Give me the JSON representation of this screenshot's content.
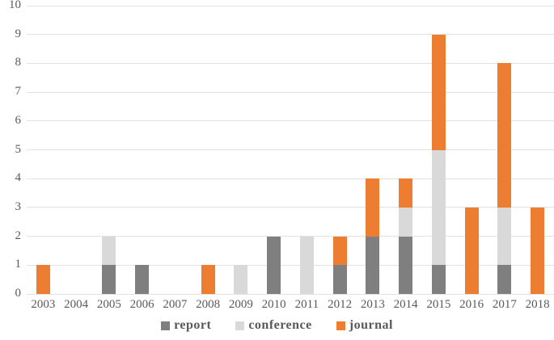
{
  "chart_data": {
    "type": "bar",
    "stacked": true,
    "title": "",
    "xlabel": "",
    "ylabel": "",
    "categories": [
      "2003",
      "2004",
      "2005",
      "2006",
      "2007",
      "2008",
      "2009",
      "2010",
      "2011",
      "2012",
      "2013",
      "2014",
      "2015",
      "2016",
      "2017",
      "2018"
    ],
    "series": [
      {
        "name": "report",
        "color": "#7f7f7f",
        "values": [
          0,
          0,
          1,
          1,
          0,
          0,
          0,
          2,
          0,
          1,
          2,
          2,
          1,
          0,
          1,
          0
        ]
      },
      {
        "name": "conference",
        "color": "#d9d9d9",
        "values": [
          0,
          0,
          1,
          0,
          0,
          0,
          1,
          0,
          2,
          0,
          0,
          1,
          4,
          0,
          2,
          0
        ]
      },
      {
        "name": "journal",
        "color": "#ed7d31",
        "values": [
          1,
          0,
          0,
          0,
          0,
          1,
          0,
          0,
          0,
          1,
          2,
          1,
          4,
          3,
          5,
          3
        ]
      }
    ],
    "ylim": [
      0,
      10
    ],
    "ytick_step": 1,
    "ytick_labels": [
      "0",
      "1",
      "2",
      "3",
      "4",
      "5",
      "6",
      "7",
      "8",
      "9",
      "10"
    ],
    "grid": true,
    "gridline_color": "#e2e2e2",
    "legend_position": "bottom",
    "legend_labels": [
      "report",
      "conference",
      "journal"
    ],
    "text_color": "#595959",
    "background_color": "#ffffff"
  }
}
